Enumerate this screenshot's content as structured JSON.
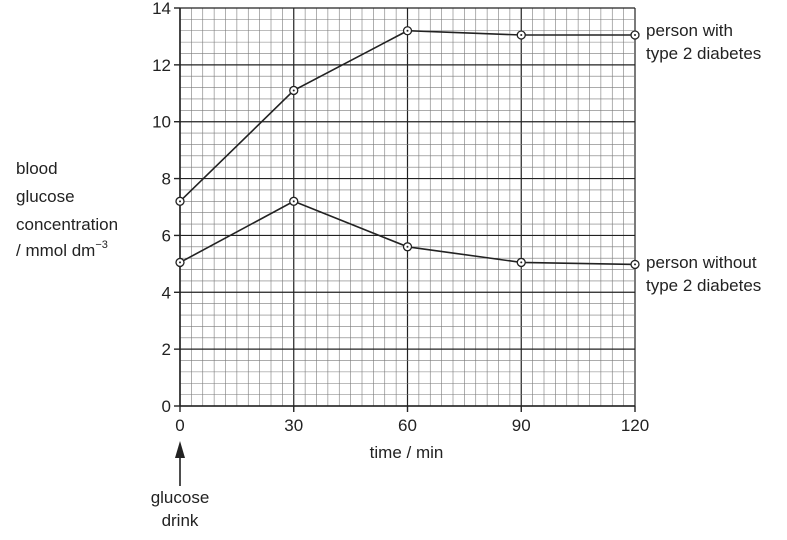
{
  "chart_data": {
    "type": "line",
    "title": "",
    "xlabel": "time / min",
    "ylabel_lines": [
      "blood",
      "glucose",
      "concentration",
      "/ mmol dm"
    ],
    "ylabel_superscript": "−3",
    "x": [
      0,
      30,
      60,
      90,
      120
    ],
    "xlim": [
      0,
      120
    ],
    "ylim": [
      0,
      14
    ],
    "xticks": [
      "0",
      "30",
      "60",
      "90",
      "120"
    ],
    "yticks": [
      "0",
      "2",
      "4",
      "6",
      "8",
      "10",
      "12",
      "14"
    ],
    "grid": "fine graph paper: major lines every 30 min and 2 mmol dm−3, minor lines every 3 min and 0.4 mmol dm−3",
    "series": [
      {
        "label_lines": [
          "person with",
          "type 2 diabetes"
        ],
        "values": [
          7.2,
          11.1,
          13.2,
          13.05,
          13.05
        ]
      },
      {
        "label_lines": [
          "person without",
          "type 2 diabetes"
        ],
        "values": [
          5.05,
          7.2,
          5.6,
          5.05,
          4.98
        ]
      }
    ],
    "annotation": {
      "text_lines": [
        "glucose",
        "drink"
      ],
      "points_to_x": 0
    },
    "colors": {
      "line": "#222222",
      "grid_minor": "#7a7a7a",
      "grid_major": "#222222"
    }
  }
}
